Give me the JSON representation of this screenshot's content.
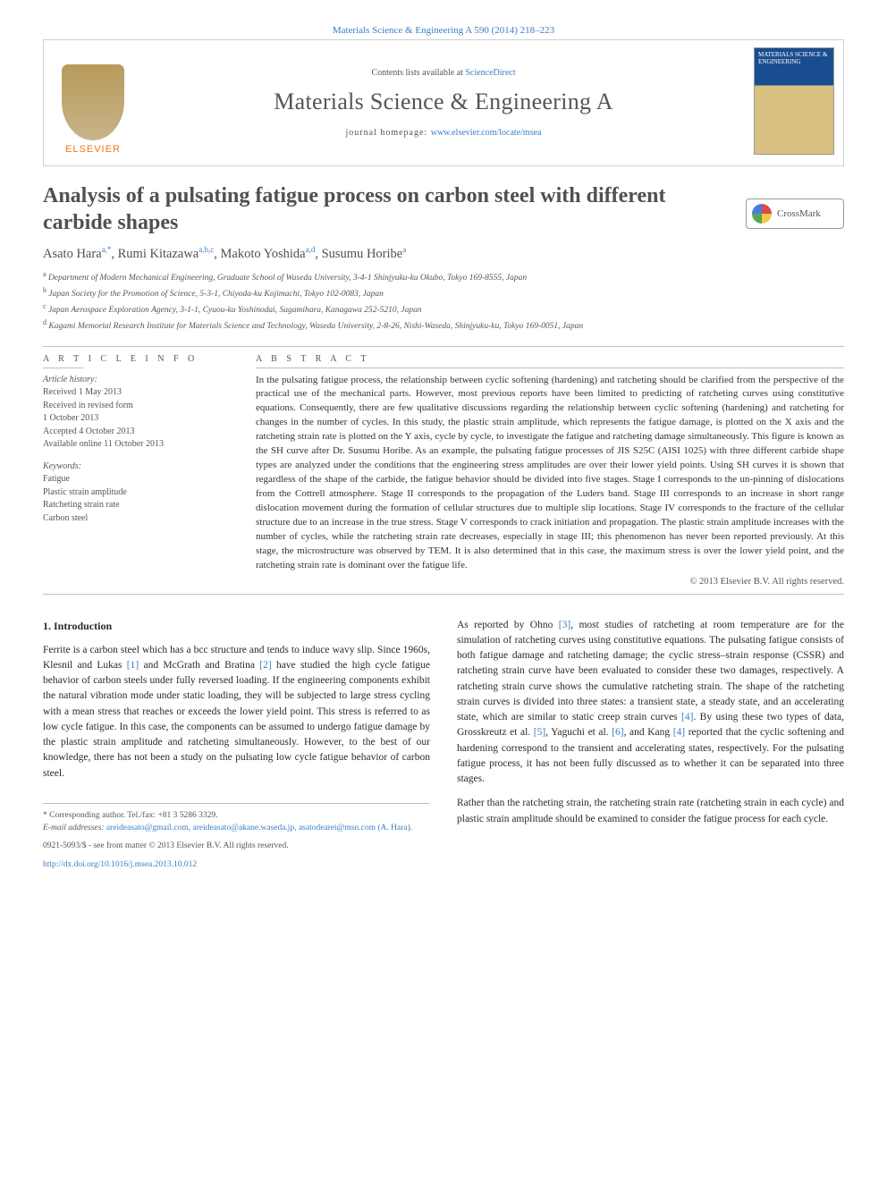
{
  "colors": {
    "link": "#3a7fc4",
    "text": "#2a2a2a",
    "muted": "#555555",
    "rule": "#bfbfbf",
    "elsevier_orange": "#e97a1a"
  },
  "fonts": {
    "body_family": "Georgia, 'Times New Roman', serif",
    "title_size_pt": 24,
    "body_size_pt": 11.5,
    "abstract_size_pt": 11,
    "info_size_pt": 10
  },
  "header": {
    "top_link_text": "Materials Science & Engineering A 590 (2014) 218–223",
    "contents_prefix": "Contents lists available at ",
    "contents_link": "ScienceDirect",
    "journal_title": "Materials Science & Engineering A",
    "homepage_prefix": "journal homepage: ",
    "homepage_link": "www.elsevier.com/locate/msea",
    "elsevier_label": "ELSEVIER",
    "cover_title": "MATERIALS SCIENCE & ENGINEERING"
  },
  "crossmark_label": "CrossMark",
  "title": "Analysis of a pulsating fatigue process on carbon steel with different carbide shapes",
  "authors_html": {
    "a1_name": "Asato Hara",
    "a1_sup": "a,*",
    "a2_name": "Rumi Kitazawa",
    "a2_sup": "a,b,c",
    "a3_name": "Makoto Yoshida",
    "a3_sup": "a,d",
    "a4_name": "Susumu Horibe",
    "a4_sup": "a"
  },
  "affiliations": {
    "a": "Department of Modern Mechanical Engineering, Graduate School of Waseda University, 3-4-1 Shinjyuku-ku Okubo, Tokyo 169-8555, Japan",
    "b": "Japan Society for the Promotion of Science, 5-3-1, Chiyoda-ku Kojimachi, Tokyo 102-0083, Japan",
    "c": "Japan Aerospace Exploration Agency, 3-1-1, Cyuou-ku Yoshinodai, Sagamihara, Kanagawa 252-5210, Japan",
    "d": "Kagami Memorial Research Institute for Materials Science and Technology, Waseda University, 2-8-26, Nishi-Waseda, Shinjyuku-ku, Tokyo 169-0051, Japan"
  },
  "article_info": {
    "label": "A R T I C L E   I N F O",
    "history_hdr": "Article history:",
    "history_lines": [
      "Received 1 May 2013",
      "Received in revised form",
      "1 October 2013",
      "Accepted 4 October 2013",
      "Available online 11 October 2013"
    ],
    "keywords_hdr": "Keywords:",
    "keywords": [
      "Fatigue",
      "Plastic strain amplitude",
      "Ratcheting strain rate",
      "Carbon steel"
    ]
  },
  "abstract": {
    "label": "A B S T R A C T",
    "text": "In the pulsating fatigue process, the relationship between cyclic softening (hardening) and ratcheting should be clarified from the perspective of the practical use of the mechanical parts. However, most previous reports have been limited to predicting of ratcheting curves using constitutive equations. Consequently, there are few qualitative discussions regarding the relationship between cyclic softening (hardening) and ratcheting for changes in the number of cycles. In this study, the plastic strain amplitude, which represents the fatigue damage, is plotted on the X axis and the ratcheting strain rate is plotted on the Y axis, cycle by cycle, to investigate the fatigue and ratcheting damage simultaneously. This figure is known as the SH curve after Dr. Susumu Horibe. As an example, the pulsating fatigue processes of JIS S25C (AISI 1025) with three different carbide shape types are analyzed under the conditions that the engineering stress amplitudes are over their lower yield points. Using SH curves it is shown that regardless of the shape of the carbide, the fatigue behavior should be divided into five stages. Stage I corresponds to the un-pinning of dislocations from the Cottrell atmosphere. Stage II corresponds to the propagation of the Luders band. Stage III corresponds to an increase in short range dislocation movement during the formation of cellular structures due to multiple slip locations. Stage IV corresponds to the fracture of the cellular structure due to an increase in the true stress. Stage V corresponds to crack initiation and propagation. The plastic strain amplitude increases with the number of cycles, while the ratcheting strain rate decreases, especially in stage III; this phenomenon has never been reported previously. At this stage, the microstructure was observed by TEM. It is also determined that in this case, the maximum stress is over the lower yield point, and the ratcheting strain rate is dominant over the fatigue life.",
    "copyright": "© 2013 Elsevier B.V. All rights reserved."
  },
  "body": {
    "intro_heading": "1.  Introduction",
    "left_p1": "Ferrite is a carbon steel which has a bcc structure and tends to induce wavy slip. Since 1960s, Klesnil and Lukas [1] and McGrath and Bratina [2] have studied the high cycle fatigue behavior of carbon steels under fully reversed loading. If the engineering components exhibit the natural vibration mode under static loading, they will be subjected to large stress cycling with a mean stress that reaches or exceeds the lower yield point. This stress is referred to as low cycle fatigue. In this case, the components can be assumed to undergo fatigue damage by the plastic strain amplitude and ratcheting simultaneously. However, to the best of our knowledge, there has not been a study on the pulsating low cycle fatigue behavior of carbon steel.",
    "right_p1": "As reported by Ohno [3], most studies of ratcheting at room temperature are for the simulation of ratcheting curves using constitutive equations. The pulsating fatigue consists of both fatigue damage and ratcheting damage; the cyclic stress–strain response (CSSR) and ratcheting strain curve have been evaluated to consider these two damages, respectively. A ratcheting strain curve shows the cumulative ratcheting strain. The shape of the ratcheting strain curves is divided into three states: a transient state, a steady state, and an accelerating state, which are similar to static creep strain curves [4]. By using these two types of data, Grosskreutz et al. [5], Yaguchi et al. [6], and Kang [4] reported that the cyclic softening and hardening correspond to the transient and accelerating states, respectively. For the pulsating fatigue process, it has not been fully discussed as to whether it can be separated into three stages.",
    "right_p2": "Rather than the ratcheting strain, the ratcheting strain rate (ratcheting strain in each cycle) and plastic strain amplitude should be examined to consider the fatigue process for each cycle."
  },
  "footnotes": {
    "corr": "* Corresponding author. Tel./fax: +81 3 5286 3329.",
    "email_label": "E-mail addresses: ",
    "emails": "areideasato@gmail.com, areideasato@akane.waseda.jp, asatodearei@msn.com (A. Hara)."
  },
  "bottom": {
    "issn": "0921-5093/$ - see front matter © 2013 Elsevier B.V. All rights reserved.",
    "doi": "http://dx.doi.org/10.1016/j.msea.2013.10.012"
  }
}
